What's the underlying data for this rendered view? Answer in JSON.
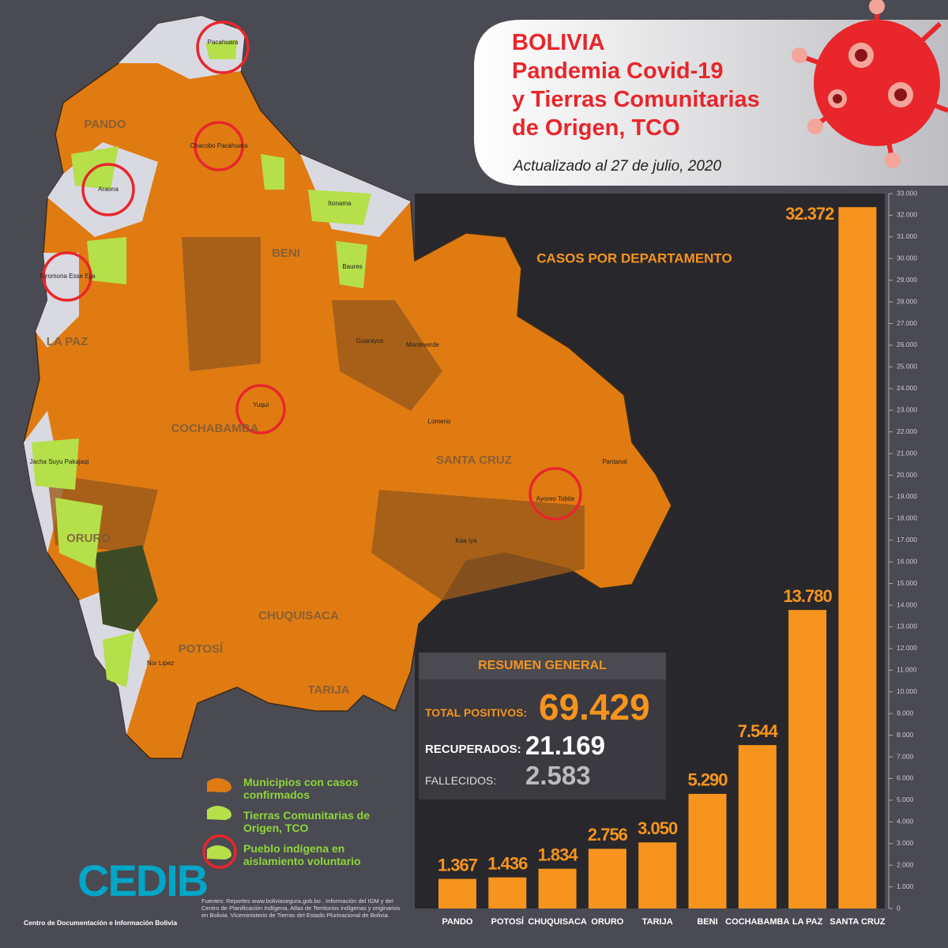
{
  "header": {
    "title_lines": [
      "BOLIVIA",
      "Pandemia Covid-19",
      "y Tierras Comunitarias",
      "de Origen, TCO"
    ],
    "subtitle": "Actualizado al 27 de julio, 2020"
  },
  "chart_data": {
    "type": "bar",
    "title": "CASOS POR DEPARTAMENTO",
    "categories": [
      "PANDO",
      "POTOSÍ",
      "CHUQUISACA",
      "ORURO",
      "TARIJA",
      "BENI",
      "COCHABAMBA",
      "LA PAZ",
      "SANTA CRUZ"
    ],
    "values": [
      1367,
      1436,
      1834,
      2756,
      3050,
      5290,
      7544,
      13780,
      32372
    ],
    "value_labels": [
      "1.367",
      "1.436",
      "1.834",
      "2.756",
      "3.050",
      "5.290",
      "7.544",
      "13.780",
      "32.372"
    ],
    "color": "#f7941d",
    "ylim": [
      0,
      33000
    ],
    "yticks": [
      0,
      {
        "value": 1000,
        "label": "1.000"
      },
      {
        "value": 2000,
        "label": "2.000"
      },
      {
        "value": 3000,
        "label": "3.000"
      },
      {
        "value": 4000,
        "label": "4.000"
      },
      {
        "value": 5000,
        "label": "5.000"
      },
      {
        "value": 6000,
        "label": "6.000"
      },
      {
        "value": 7000,
        "label": "7.000"
      },
      {
        "value": 8000,
        "label": "8.000"
      },
      {
        "value": 9000,
        "label": "9.000"
      },
      {
        "value": 10000,
        "label": "10.000"
      },
      {
        "value": 11000,
        "label": "11.000"
      },
      {
        "value": 12000,
        "label": "12.000"
      },
      {
        "value": 13000,
        "label": "13.000"
      },
      {
        "value": 14000,
        "label": "14.000"
      },
      {
        "value": 15000,
        "label": "15.000"
      },
      {
        "value": 16000,
        "label": "16.000"
      },
      {
        "value": 17000,
        "label": "17.000"
      },
      {
        "value": 18000,
        "label": "18.000"
      },
      {
        "value": 19000,
        "label": "19.000"
      },
      {
        "value": 20000,
        "label": "20.000"
      },
      {
        "value": 21000,
        "label": "21.000"
      },
      {
        "value": 22000,
        "label": "22.000"
      },
      {
        "value": 23000,
        "label": "23.000"
      },
      {
        "value": 24000,
        "label": "24.000"
      },
      {
        "value": 25000,
        "label": "25.000"
      },
      {
        "value": 26000,
        "label": "26.000"
      },
      {
        "value": 27000,
        "label": "27.000"
      },
      {
        "value": 28000,
        "label": "28.000"
      },
      {
        "value": 29000,
        "label": "29.000"
      },
      {
        "value": 30000,
        "label": "30.000"
      },
      {
        "value": 31000,
        "label": "31.000"
      },
      {
        "value": 32000,
        "label": "32.000"
      },
      {
        "value": 33000,
        "label": "33.000"
      }
    ]
  },
  "summary": {
    "title": "RESUMEN GENERAL",
    "rows": [
      {
        "label": "TOTAL POSITIVOS:",
        "value": "69.429"
      },
      {
        "label": "RECUPERADOS:",
        "value": "21.169"
      },
      {
        "label": "FALLECIDOS:",
        "value": "2.583"
      }
    ]
  },
  "map": {
    "departments": [
      "PANDO",
      "BENI",
      "LA PAZ",
      "COCHABAMBA",
      "ORURO",
      "POTOSÍ",
      "CHUQUISACA",
      "TARIJA",
      "SANTA CRUZ"
    ],
    "places": [
      "Pacahuara",
      "Araona",
      "Toromona Esse Ejja",
      "Chacobo Pacahuara",
      "Yuqui",
      "Ayoreo Tobite",
      "Itonama",
      "Baures",
      "Guarayos",
      "Monteverde",
      "Lomerio",
      "Pantanal",
      "Kaa Iya",
      "Jacha Suyu Pakajaqi",
      "Nor Lipez"
    ]
  },
  "legend": [
    "Municipios con casos confirmados",
    "Tierras Comunitarias de Origen, TCO",
    "Pueblo indígena en aislamiento voluntario"
  ],
  "logo": {
    "name": "CEDIB",
    "tagline": "Centro de Documentación e Información Bolivia"
  },
  "sources": "Fuentes: Reportes www.boliviasegura.gob.bo . Información del IGM y del Centro de Planificación Indígena, Atlas de Territorios indígenas y originarios en Bolivia. Viceministerio de Tierras del Estado Plurinacional de Bolivia."
}
